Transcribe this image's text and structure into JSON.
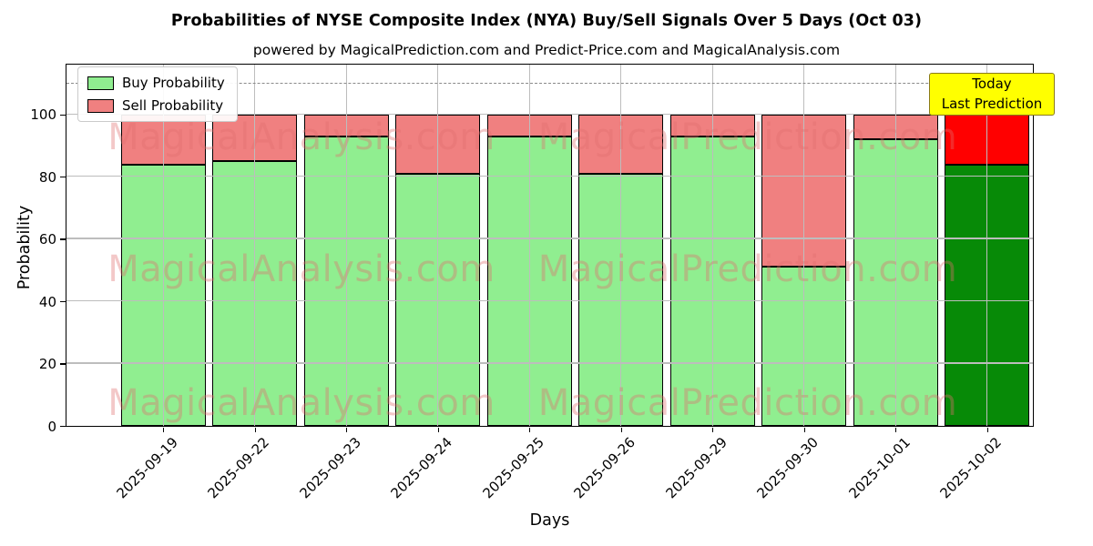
{
  "chart_data": {
    "type": "bar",
    "stacked": true,
    "title": "Probabilities of NYSE Composite Index (NYA) Buy/Sell Signals Over 5 Days (Oct 03)",
    "subtitle": "powered by MagicalPrediction.com and Predict-Price.com and MagicalAnalysis.com",
    "xlabel": "Days",
    "ylabel": "Probability",
    "categories": [
      "2025-09-19",
      "2025-09-22",
      "2025-09-23",
      "2025-09-24",
      "2025-09-25",
      "2025-09-26",
      "2025-09-29",
      "2025-09-30",
      "2025-10-01",
      "2025-10-02"
    ],
    "series": [
      {
        "name": "Buy Probability",
        "color": "#90ee90",
        "today_color": "#078a07",
        "values": [
          84,
          85,
          93,
          81,
          93,
          81,
          93,
          51,
          92,
          84
        ]
      },
      {
        "name": "Sell Probability",
        "color": "#f08080",
        "today_color": "#ff0000",
        "values": [
          16,
          15,
          7,
          19,
          7,
          19,
          7,
          49,
          8,
          16
        ]
      }
    ],
    "ylim": [
      0,
      116
    ],
    "yticks": [
      0,
      20,
      40,
      60,
      80,
      100
    ],
    "grid": true,
    "grid_color": "#bdbdbd",
    "bar_edge_color": "#000000",
    "legend_position": "upper left",
    "reference_line": {
      "y": 110,
      "style": "dashed",
      "color": "#8a8a8a"
    }
  },
  "legend": {
    "items": [
      {
        "label": "Buy Probability",
        "color": "#90ee90"
      },
      {
        "label": "Sell Probability",
        "color": "#f08080"
      }
    ]
  },
  "annotation": {
    "line1": "Today",
    "line2": "Last Prediction",
    "bg_color": "#ffff00",
    "border_color": "#8a7a1a"
  },
  "watermarks": {
    "color": "rgba(224,110,110,0.38)",
    "left_text": "MagicalAnalysis.com",
    "right_text": "MagicalPrediction.com"
  }
}
